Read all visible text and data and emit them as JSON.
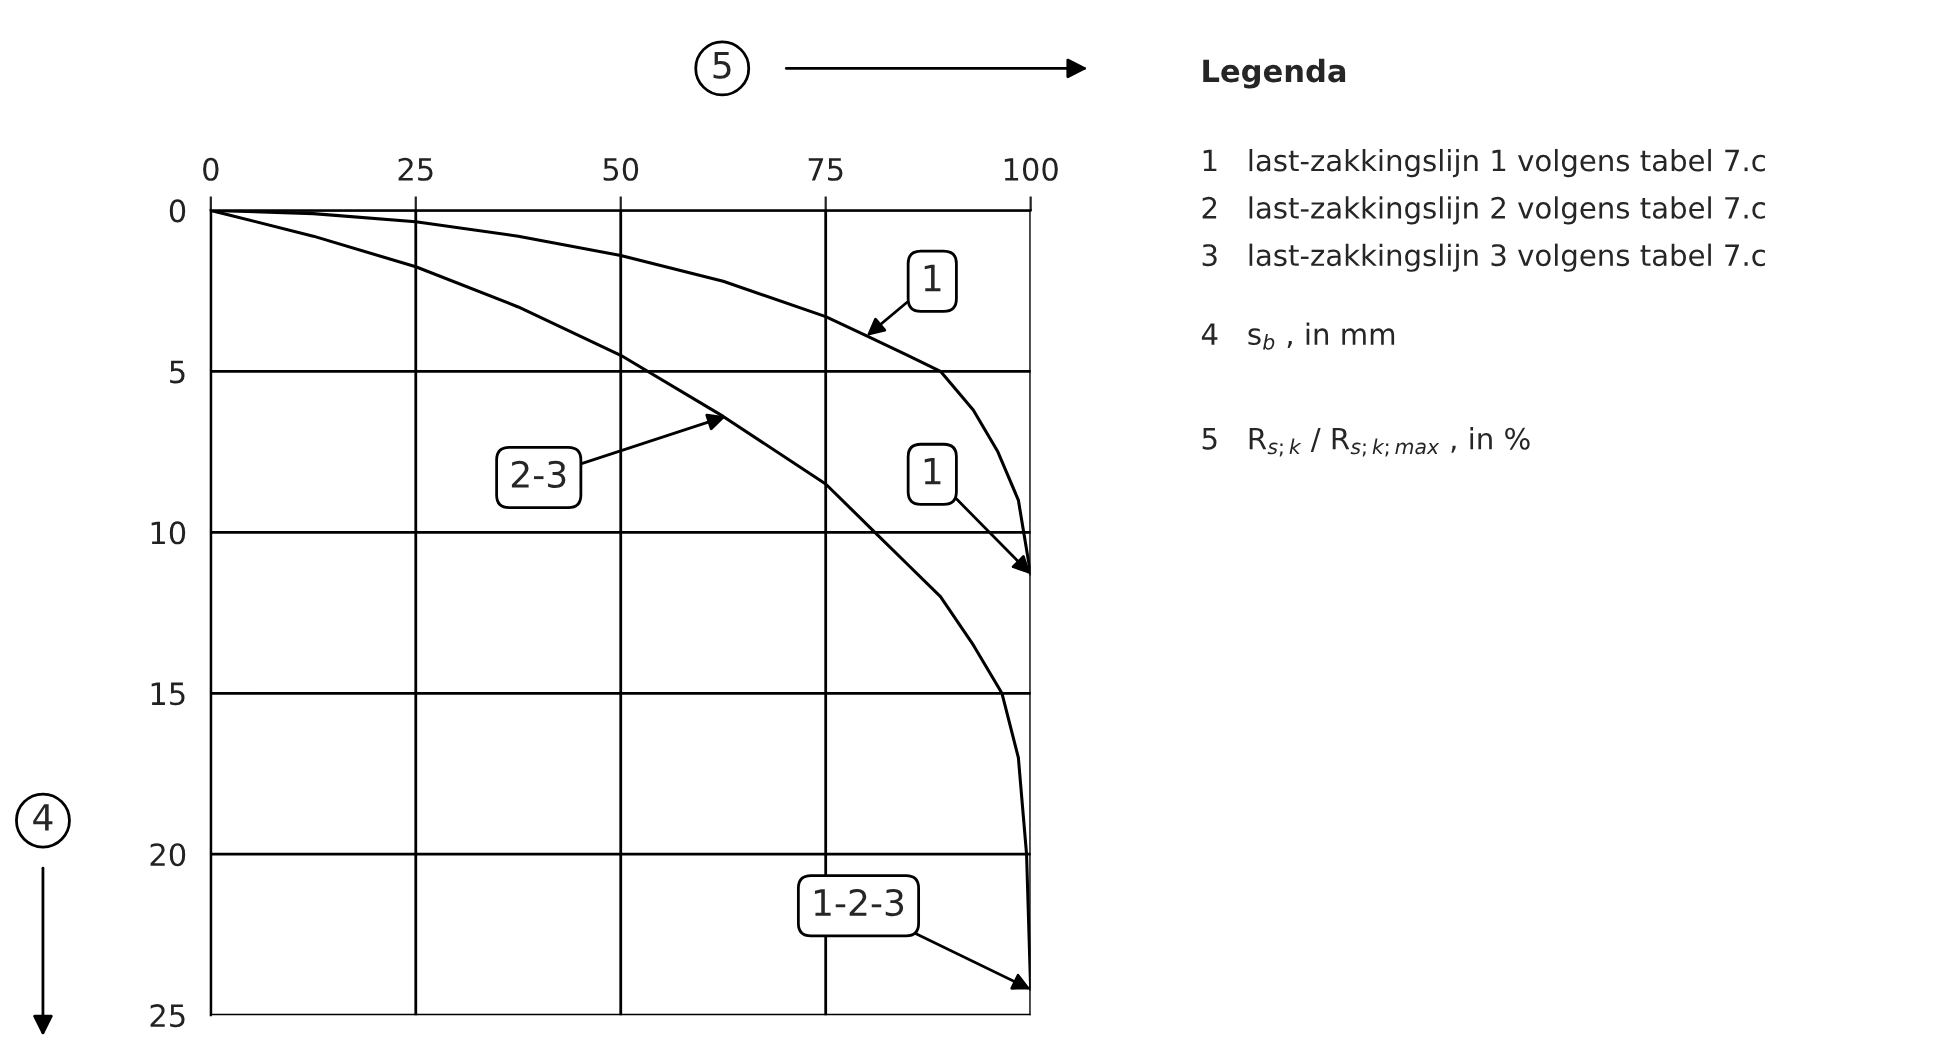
{
  "chart_data": {
    "type": "line",
    "xlabel": "5",
    "ylabel": "4",
    "x": [
      0,
      12.5,
      25,
      37.5,
      50,
      62.5,
      75,
      80,
      85,
      89,
      93,
      96,
      98.5,
      100
    ],
    "series": [
      {
        "color": "#000000",
        "values": [
          0,
          0.1,
          0.35,
          0.8,
          1.4,
          2.2,
          3.3,
          3.9,
          4.5,
          5,
          6.2,
          7.5,
          9,
          11.3
        ]
      },
      {
        "color": "#000000",
        "x": [
          0,
          12.5,
          25,
          37.5,
          50,
          62.5,
          75,
          81,
          85,
          89,
          93,
          96.5,
          98.5,
          99.5,
          100
        ],
        "values": [
          0,
          0.8,
          1.75,
          3,
          4.5,
          6.4,
          8.5,
          10,
          11,
          12,
          13.5,
          15,
          17,
          20,
          24.2
        ]
      }
    ],
    "xlim": [
      0,
      100
    ],
    "ylim": [
      25,
      0
    ],
    "xticks": [
      0,
      25,
      50,
      75,
      100
    ],
    "yticks": [
      0,
      5,
      10,
      15,
      20,
      25
    ],
    "grid": true,
    "line_style": "solid",
    "annotations": [
      {
        "text": "1",
        "x": 80,
        "y": 3.9
      },
      {
        "text": "1",
        "x": 100,
        "y": 11.3
      },
      {
        "text": "2-3",
        "x": 62.8,
        "y": 6.4
      },
      {
        "text": "1-2-3",
        "x": 100,
        "y": 24.2
      },
      "Legenda",
      "1   last-zakkingslijn 1 volgens tabel 7.c",
      "2   last-zakkingslijn 2 volgens tabel 7.c",
      "3   last-zakkingslijn 3 volgens tabel 7.c",
      "4   s$_{b}$ , in mm",
      "5   R$_{s;k}$ / R$_{s;k;max}$ , in %"
    ]
  }
}
